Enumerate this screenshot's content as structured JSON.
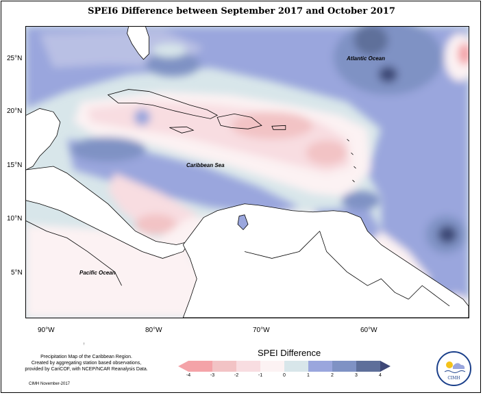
{
  "title": "SPEI6 Difference between September 2017 and October 2017",
  "lat_labels": [
    "25°N",
    "20°N",
    "15°N",
    "10°N",
    "5°N"
  ],
  "lon_labels": [
    "90°W",
    "80°W",
    "70°W",
    "60°W"
  ],
  "ocean_labels": {
    "atlantic": "Atlantic Ocean",
    "caribbean": "Caribbean Sea",
    "pacific": "Pacific Ocean"
  },
  "stray_mark": "↑",
  "footnote": {
    "line1": "Precipitation Map of the Caribbean Region.",
    "line2": "Created by aggregating station based observations,",
    "line3": "provided by CariCOF, with NCEP/NCAR Reanalysis Data."
  },
  "credit": "CIMH November-2017",
  "legend": {
    "title": "SPEI Difference",
    "ticks": [
      "-4",
      "-3",
      "-2",
      "-1",
      "0",
      "1",
      "2",
      "3",
      "4"
    ],
    "colors": [
      "#f4a3a8",
      "#f2c3c5",
      "#f8dde1",
      "#fcf2f3",
      "#d8e6ea",
      "#9aa6dd",
      "#7f92c4",
      "#5e6f9a",
      "#3e4877"
    ]
  },
  "logo_text": "CIMH"
}
